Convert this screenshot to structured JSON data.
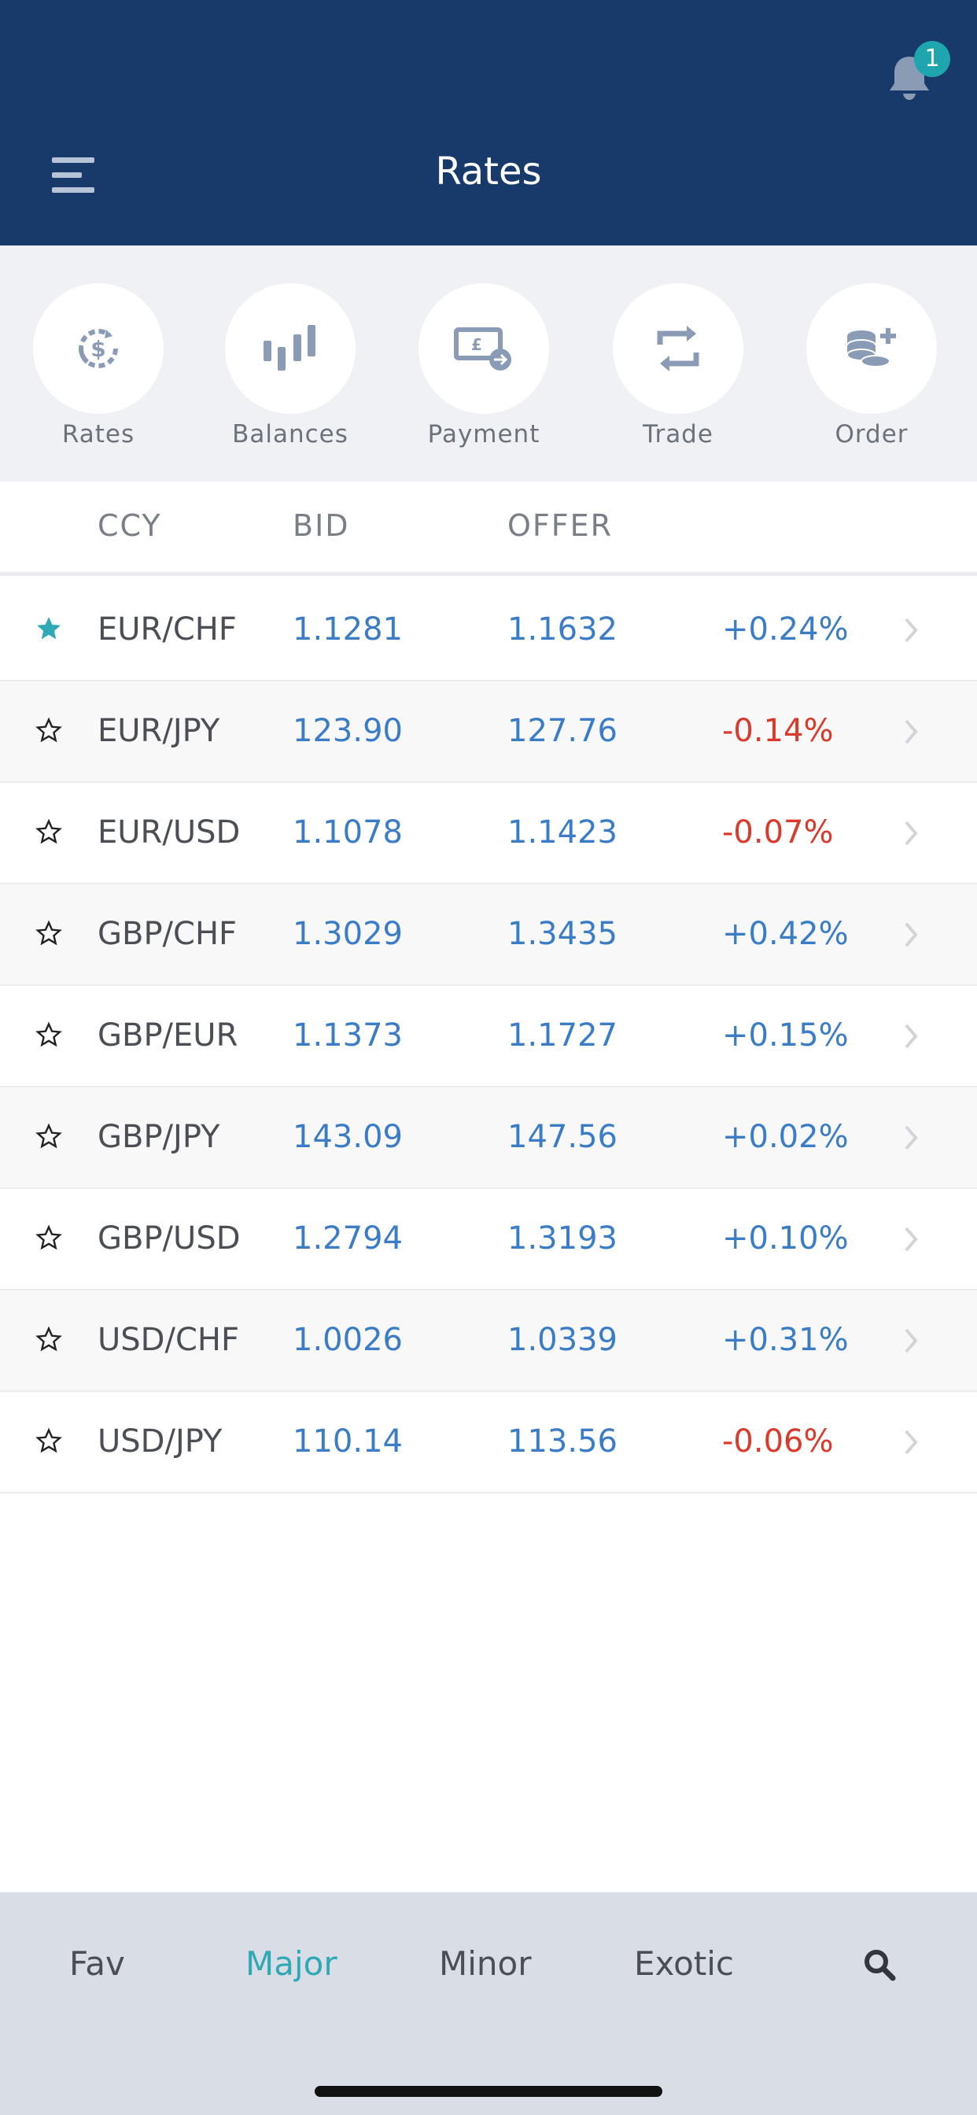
{
  "header": {
    "title": "Rates",
    "notification_count": "1"
  },
  "actions": [
    {
      "label": "Rates",
      "icon": "rates-icon"
    },
    {
      "label": "Balances",
      "icon": "balances-icon"
    },
    {
      "label": "Payment",
      "icon": "payment-icon"
    },
    {
      "label": "Trade",
      "icon": "trade-icon"
    },
    {
      "label": "Order",
      "icon": "order-icon"
    }
  ],
  "table": {
    "headers": {
      "ccy": "CCY",
      "bid": "BID",
      "offer": "OFFER"
    },
    "rows": [
      {
        "ccy": "EUR/CHF",
        "bid": "1.1281",
        "offer": "1.1632",
        "change": "+0.24%",
        "favorite": true,
        "direction": "up"
      },
      {
        "ccy": "EUR/JPY",
        "bid": "123.90",
        "offer": "127.76",
        "change": "-0.14%",
        "favorite": false,
        "direction": "down"
      },
      {
        "ccy": "EUR/USD",
        "bid": "1.1078",
        "offer": "1.1423",
        "change": "-0.07%",
        "favorite": false,
        "direction": "down"
      },
      {
        "ccy": "GBP/CHF",
        "bid": "1.3029",
        "offer": "1.3435",
        "change": "+0.42%",
        "favorite": false,
        "direction": "up"
      },
      {
        "ccy": "GBP/EUR",
        "bid": "1.1373",
        "offer": "1.1727",
        "change": "+0.15%",
        "favorite": false,
        "direction": "up"
      },
      {
        "ccy": "GBP/JPY",
        "bid": "143.09",
        "offer": "147.56",
        "change": "+0.02%",
        "favorite": false,
        "direction": "up"
      },
      {
        "ccy": "GBP/USD",
        "bid": "1.2794",
        "offer": "1.3193",
        "change": "+0.10%",
        "favorite": false,
        "direction": "up"
      },
      {
        "ccy": "USD/CHF",
        "bid": "1.0026",
        "offer": "1.0339",
        "change": "+0.31%",
        "favorite": false,
        "direction": "up"
      },
      {
        "ccy": "USD/JPY",
        "bid": "110.14",
        "offer": "113.56",
        "change": "-0.06%",
        "favorite": false,
        "direction": "down"
      }
    ]
  },
  "bottom_tabs": [
    {
      "label": "Fav",
      "active": false
    },
    {
      "label": "Major",
      "active": true
    },
    {
      "label": "Minor",
      "active": false
    },
    {
      "label": "Exotic",
      "active": false
    }
  ],
  "colors": {
    "header_bg": "#173a6a",
    "accent_teal": "#2fa9b4",
    "positive": "#3a7cc6",
    "negative": "#d93a2b",
    "icon_gray": "#8a9bb5"
  }
}
